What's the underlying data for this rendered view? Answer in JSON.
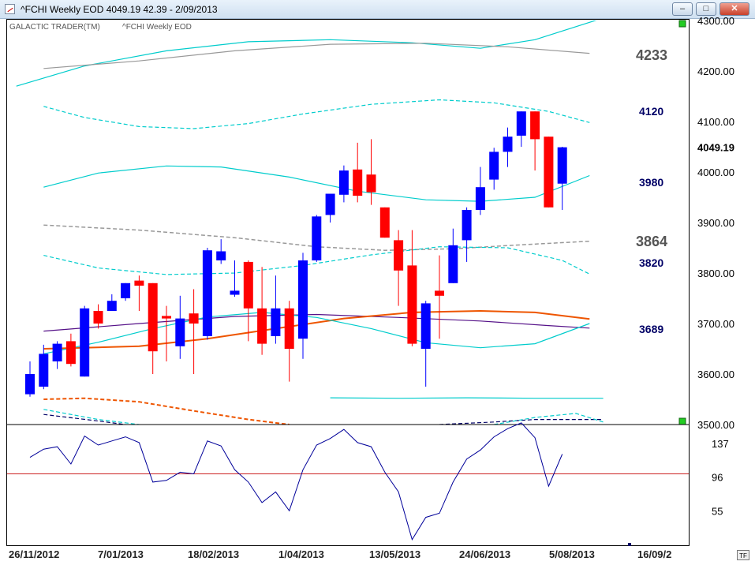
{
  "window": {
    "title": "^FCHI Weekly EOD  4049.19    42.39 - 2/09/2013",
    "buttons": {
      "minimize": "–",
      "maximize": "□",
      "close": "✕"
    }
  },
  "header": {
    "brand": "GALACTIC TRADER(TM)",
    "instrument": "^FCHI Weekly EOD"
  },
  "badge": "TF",
  "colors": {
    "up": "#0000ff",
    "down": "#ff0000",
    "cyan": "#00cccc",
    "gray": "#999999",
    "orange": "#ee5500",
    "purple": "#551188",
    "navy": "#000066"
  },
  "chart_data": [
    {
      "type": "candlestick",
      "title": "^FCHI Weekly EOD",
      "ylim": [
        3500,
        4300
      ],
      "y_ticks": [
        "4300.00",
        "4200.00",
        "4100.00",
        "4000.00",
        "3900.00",
        "3800.00",
        "3700.00",
        "3600.00",
        "3500.00"
      ],
      "last_price_label": "4049.19",
      "x_tick_labels": [
        "26/11/2012",
        "7/01/2013",
        "18/02/2013",
        "1/04/2013",
        "13/05/2013",
        "24/06/2013",
        "5/08/2013",
        "16/09/2"
      ],
      "candles": [
        {
          "o": 3560,
          "h": 3625,
          "l": 3555,
          "c": 3600
        },
        {
          "o": 3575,
          "h": 3658,
          "l": 3570,
          "c": 3640
        },
        {
          "o": 3625,
          "h": 3665,
          "l": 3610,
          "c": 3660
        },
        {
          "o": 3665,
          "h": 3680,
          "l": 3615,
          "c": 3620
        },
        {
          "o": 3595,
          "h": 3735,
          "l": 3595,
          "c": 3730
        },
        {
          "o": 3725,
          "h": 3738,
          "l": 3690,
          "c": 3700
        },
        {
          "o": 3725,
          "h": 3758,
          "l": 3725,
          "c": 3745
        },
        {
          "o": 3750,
          "h": 3780,
          "l": 3745,
          "c": 3780
        },
        {
          "o": 3785,
          "h": 3795,
          "l": 3725,
          "c": 3775
        },
        {
          "o": 3780,
          "h": 3780,
          "l": 3600,
          "c": 3645
        },
        {
          "o": 3715,
          "h": 3735,
          "l": 3625,
          "c": 3710
        },
        {
          "o": 3655,
          "h": 3755,
          "l": 3630,
          "c": 3710
        },
        {
          "o": 3720,
          "h": 3768,
          "l": 3600,
          "c": 3700
        },
        {
          "o": 3675,
          "h": 3850,
          "l": 3668,
          "c": 3845
        },
        {
          "o": 3825,
          "h": 3867,
          "l": 3818,
          "c": 3843
        },
        {
          "o": 3757,
          "h": 3825,
          "l": 3753,
          "c": 3765
        },
        {
          "o": 3822,
          "h": 3825,
          "l": 3665,
          "c": 3730
        },
        {
          "o": 3730,
          "h": 3812,
          "l": 3638,
          "c": 3660
        },
        {
          "o": 3675,
          "h": 3795,
          "l": 3660,
          "c": 3730
        },
        {
          "o": 3730,
          "h": 3745,
          "l": 3585,
          "c": 3650
        },
        {
          "o": 3670,
          "h": 3840,
          "l": 3630,
          "c": 3825
        },
        {
          "o": 3825,
          "h": 3915,
          "l": 3822,
          "c": 3912
        },
        {
          "o": 3915,
          "h": 3957,
          "l": 3900,
          "c": 3957
        },
        {
          "o": 3955,
          "h": 4013,
          "l": 3940,
          "c": 4003
        },
        {
          "o": 4005,
          "h": 4058,
          "l": 3940,
          "c": 3953
        },
        {
          "o": 3995,
          "h": 4065,
          "l": 3935,
          "c": 3960
        },
        {
          "o": 3930,
          "h": 3930,
          "l": 3870,
          "c": 3870
        },
        {
          "o": 3865,
          "h": 3885,
          "l": 3735,
          "c": 3805
        },
        {
          "o": 3815,
          "h": 3885,
          "l": 3655,
          "c": 3660
        },
        {
          "o": 3650,
          "h": 3745,
          "l": 3575,
          "c": 3740
        },
        {
          "o": 3765,
          "h": 3835,
          "l": 3670,
          "c": 3755
        },
        {
          "o": 3780,
          "h": 3888,
          "l": 3780,
          "c": 3855
        },
        {
          "o": 3865,
          "h": 3930,
          "l": 3822,
          "c": 3925
        },
        {
          "o": 3925,
          "h": 4010,
          "l": 3915,
          "c": 3970
        },
        {
          "o": 3985,
          "h": 4048,
          "l": 3965,
          "c": 4040
        },
        {
          "o": 4040,
          "h": 4088,
          "l": 4010,
          "c": 4070
        },
        {
          "o": 4072,
          "h": 4120,
          "l": 4050,
          "c": 4120
        },
        {
          "o": 4120,
          "h": 4120,
          "l": 4003,
          "c": 4065
        },
        {
          "o": 4070,
          "h": 4070,
          "l": 3930,
          "c": 3930
        },
        {
          "o": 3977,
          "h": 4050,
          "l": 3925,
          "c": 4049
        }
      ],
      "level_labels": [
        {
          "text": "4233",
          "value": 4233,
          "style": "large"
        },
        {
          "text": "4120",
          "value": 4120,
          "style": "small"
        },
        {
          "text": "3980",
          "value": 3980,
          "style": "small"
        },
        {
          "text": "3864",
          "value": 3864,
          "style": "large"
        },
        {
          "text": "3820",
          "value": 3820,
          "style": "small"
        },
        {
          "text": "3689",
          "value": 3689,
          "style": "small"
        }
      ],
      "channel_lines": [
        {
          "color": "cyan",
          "dash": false,
          "points": [
            [
              -1,
              4170
            ],
            [
              4,
              4210
            ],
            [
              10,
              4240
            ],
            [
              16,
              4258
            ],
            [
              22,
              4262
            ],
            [
              28,
              4256
            ],
            [
              33,
              4245
            ],
            [
              37,
              4262
            ],
            [
              42,
              4305
            ]
          ]
        },
        {
          "color": "gray",
          "dash": false,
          "points": [
            [
              1,
              4205
            ],
            [
              8,
              4220
            ],
            [
              15,
              4240
            ],
            [
              22,
              4253
            ],
            [
              29,
              4255
            ],
            [
              35,
              4248
            ],
            [
              41,
              4235
            ]
          ]
        },
        {
          "color": "cyan",
          "dash": true,
          "points": [
            [
              1,
              4130
            ],
            [
              4,
              4108
            ],
            [
              8,
              4090
            ],
            [
              12,
              4086
            ],
            [
              16,
              4096
            ],
            [
              20,
              4115
            ],
            [
              25,
              4134
            ],
            [
              30,
              4143
            ],
            [
              34,
              4137
            ],
            [
              38,
              4120
            ],
            [
              41,
              4098
            ]
          ]
        },
        {
          "color": "cyan",
          "dash": false,
          "points": [
            [
              1,
              3970
            ],
            [
              5,
              3998
            ],
            [
              10,
              4012
            ],
            [
              14,
              4010
            ],
            [
              19,
              3990
            ],
            [
              24,
              3962
            ],
            [
              29,
              3945
            ],
            [
              33,
              3942
            ],
            [
              37,
              3950
            ],
            [
              41,
              3993
            ]
          ]
        },
        {
          "color": "gray",
          "dash": true,
          "points": [
            [
              1,
              3895
            ],
            [
              8,
              3885
            ],
            [
              15,
              3870
            ],
            [
              21,
              3852
            ],
            [
              26,
              3845
            ],
            [
              31,
              3848
            ],
            [
              36,
              3856
            ],
            [
              41,
              3863
            ]
          ]
        },
        {
          "color": "cyan",
          "dash": true,
          "points": [
            [
              1,
              3835
            ],
            [
              5,
              3810
            ],
            [
              10,
              3797
            ],
            [
              15,
              3800
            ],
            [
              20,
              3815
            ],
            [
              25,
              3836
            ],
            [
              30,
              3852
            ],
            [
              35,
              3850
            ],
            [
              39,
              3825
            ],
            [
              41,
              3798
            ]
          ]
        },
        {
          "color": "purple",
          "dash": false,
          "points": [
            [
              1,
              3685
            ],
            [
              8,
              3700
            ],
            [
              15,
              3714
            ],
            [
              21,
              3718
            ],
            [
              27,
              3712
            ],
            [
              33,
              3705
            ],
            [
              38,
              3696
            ],
            [
              41,
              3691
            ]
          ]
        },
        {
          "color": "orange",
          "dash": false,
          "points": [
            [
              1,
              3650
            ],
            [
              8,
              3655
            ],
            [
              13,
              3670
            ],
            [
              18,
              3690
            ],
            [
              23,
              3710
            ],
            [
              28,
              3722
            ],
            [
              33,
              3725
            ],
            [
              37,
              3722
            ],
            [
              41,
              3709
            ]
          ]
        },
        {
          "color": "cyan",
          "dash": false,
          "points": [
            [
              1,
              3640
            ],
            [
              5,
              3663
            ],
            [
              9,
              3690
            ],
            [
              13,
              3713
            ],
            [
              17,
              3722
            ],
            [
              21,
              3712
            ],
            [
              25,
              3690
            ],
            [
              29,
              3662
            ],
            [
              33,
              3652
            ],
            [
              37,
              3660
            ],
            [
              41,
              3700
            ]
          ]
        },
        {
          "color": "cyan",
          "dash": false,
          "points": [
            [
              22,
              3553
            ],
            [
              27,
              3552
            ],
            [
              32,
              3553
            ],
            [
              37,
              3552
            ],
            [
              42,
              3552
            ]
          ]
        },
        {
          "color": "orange",
          "dash": true,
          "points": [
            [
              1,
              3550
            ],
            [
              4,
              3552
            ],
            [
              8,
              3545
            ],
            [
              12,
              3527
            ],
            [
              16,
              3510
            ],
            [
              19,
              3500
            ]
          ]
        },
        {
          "color": "cyan",
          "dash": true,
          "points": [
            [
              1,
              3530
            ],
            [
              5,
              3510
            ],
            [
              8,
              3500
            ]
          ]
        },
        {
          "color": "navy",
          "dash": true,
          "points": [
            [
              1,
              3520
            ],
            [
              5,
              3507
            ],
            [
              7,
              3500
            ]
          ]
        },
        {
          "color": "navy",
          "dash": true,
          "points": [
            [
              30,
              3500
            ],
            [
              34,
              3505
            ],
            [
              37,
              3510
            ],
            [
              42,
              3510
            ]
          ]
        },
        {
          "color": "cyan",
          "dash": true,
          "points": [
            [
              34,
              3500
            ],
            [
              37,
              3514
            ],
            [
              40,
              3522
            ],
            [
              42,
              3505
            ]
          ]
        }
      ]
    },
    {
      "type": "line",
      "title": "",
      "ylim": [
        14,
        160
      ],
      "y_ticks": [
        "137",
        "96",
        "55"
      ],
      "reference_level": 100,
      "series": [
        {
          "values": [
            120,
            130,
            133,
            112,
            146,
            135,
            140,
            145,
            138,
            90,
            92,
            102,
            100,
            140,
            134,
            105,
            90,
            65,
            78,
            55,
            105,
            135,
            143,
            154,
            138,
            133,
            102,
            78,
            20,
            47,
            52,
            90,
            118,
            129,
            145,
            155,
            162,
            144,
            85,
            124
          ]
        }
      ]
    }
  ]
}
